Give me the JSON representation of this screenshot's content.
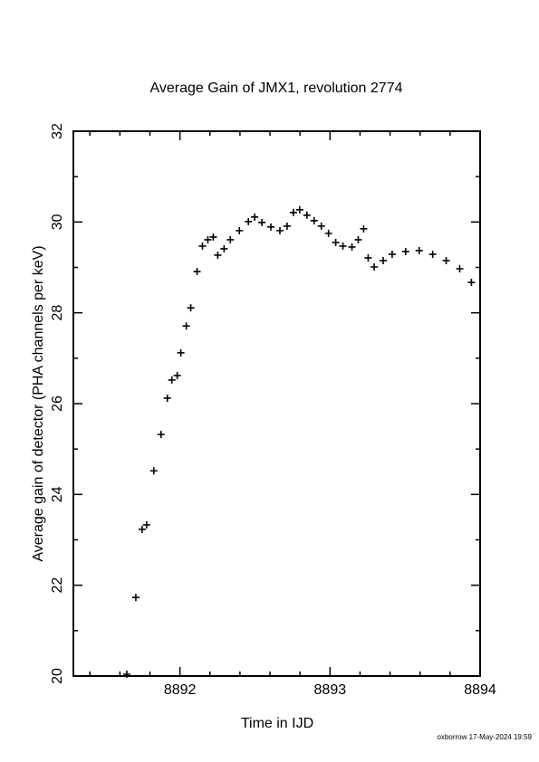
{
  "chart_data": {
    "type": "scatter",
    "title": "Average Gain of JMX1, revolution 2774",
    "x_label": "Time in IJD",
    "y_label": "Average gain of detector (PHA channels per keV)",
    "footer": "oxborrow 17-May-2024 19:59",
    "marker": "plus",
    "color": "#000000",
    "xlim": [
      8891.29,
      8894
    ],
    "ylim": [
      20,
      32
    ],
    "xticks": [
      8892,
      8893,
      8894
    ],
    "yticks": [
      20,
      22,
      24,
      26,
      28,
      30,
      32
    ],
    "xminorticks": [
      8891.4,
      8891.6,
      8891.8,
      8892.2,
      8892.4,
      8892.6,
      8892.8,
      8893.2,
      8893.4,
      8893.6,
      8893.8
    ],
    "yminorticks": [
      21,
      23,
      25,
      27,
      29,
      31
    ],
    "series": [
      {
        "name": "JMX1",
        "x": [
          8891.646,
          8891.706,
          8891.748,
          8891.778,
          8891.826,
          8891.874,
          8891.916,
          8891.946,
          8891.982,
          8892.006,
          8892.042,
          8892.072,
          8892.114,
          8892.15,
          8892.186,
          8892.222,
          8892.252,
          8892.294,
          8892.336,
          8892.396,
          8892.456,
          8892.498,
          8892.546,
          8892.606,
          8892.666,
          8892.714,
          8892.756,
          8892.798,
          8892.846,
          8892.894,
          8892.942,
          8892.99,
          8893.038,
          8893.086,
          8893.146,
          8893.188,
          8893.224,
          8893.254,
          8893.294,
          8893.354,
          8893.414,
          8893.504,
          8893.594,
          8893.684,
          8893.774,
          8893.864,
          8893.942
        ],
        "values": [
          20.04,
          21.73,
          23.23,
          23.33,
          24.52,
          25.32,
          26.12,
          26.52,
          26.62,
          27.12,
          27.71,
          28.11,
          28.91,
          29.47,
          29.61,
          29.67,
          29.27,
          29.41,
          29.61,
          29.81,
          30.01,
          30.11,
          29.99,
          29.89,
          29.81,
          29.91,
          30.21,
          30.27,
          30.15,
          30.03,
          29.91,
          29.75,
          29.55,
          29.47,
          29.45,
          29.61,
          29.85,
          29.21,
          29.01,
          29.15,
          29.29,
          29.35,
          29.37,
          29.29,
          29.15,
          28.97,
          28.67
        ]
      }
    ]
  }
}
